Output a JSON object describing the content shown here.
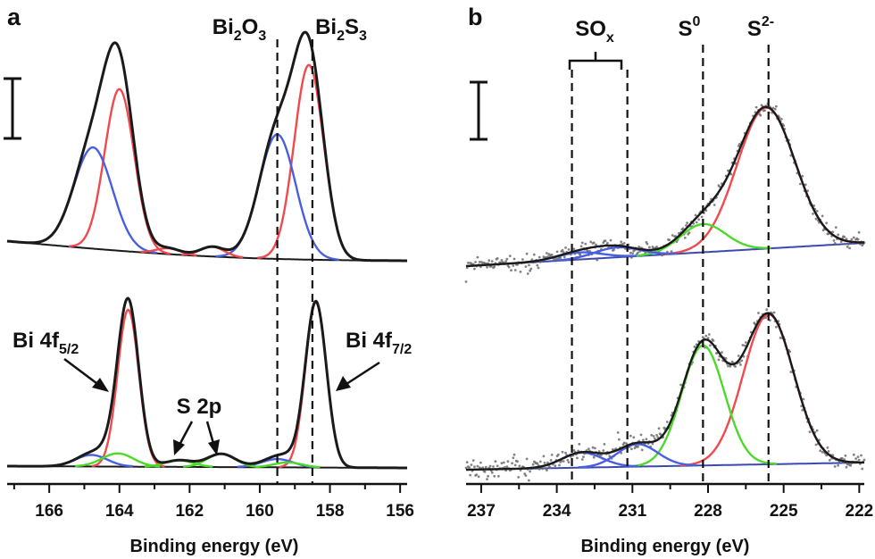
{
  "figure": {
    "panel_a_letter": "a",
    "panel_b_letter": "b"
  },
  "chart_data": [
    {
      "type": "line",
      "panel": "a",
      "xlabel": "Binding energy (eV)",
      "xlim": [
        167.2,
        155.8
      ],
      "x_reversed": true,
      "x_ticks": [
        166,
        164,
        162,
        160,
        158,
        156
      ],
      "grid": false,
      "annotations": {
        "ref1": {
          "text": "Bi",
          "s1": "2",
          "mid": "O",
          "s2": "3",
          "x": 159.5
        },
        "ref2": {
          "text": "Bi",
          "s1": "2",
          "mid": "S",
          "s2": "3",
          "x": 158.5
        },
        "bi52": {
          "text": "Bi 4f",
          "sub": "5/2"
        },
        "bi72": {
          "text": "Bi 4f",
          "sub": "7/2"
        },
        "s2p": {
          "text": "S 2p"
        }
      },
      "spectra": [
        {
          "offset": "upper",
          "peaks": [
            {
              "component": "red",
              "center": 164.0,
              "height": 0.83,
              "width": 0.42
            },
            {
              "component": "blue",
              "center": 164.75,
              "height": 0.52,
              "width": 0.55
            },
            {
              "component": "red",
              "center": 158.6,
              "height": 1.0,
              "width": 0.42
            },
            {
              "component": "blue",
              "center": 159.5,
              "height": 0.64,
              "width": 0.52
            },
            {
              "component": "red",
              "center": 161.35,
              "height": 0.05,
              "width": 0.35
            },
            {
              "component": "red",
              "center": 162.6,
              "height": 0.03,
              "width": 0.35
            }
          ]
        },
        {
          "offset": "lower",
          "peaks": [
            {
              "component": "red",
              "center": 163.75,
              "height": 0.95,
              "width": 0.3
            },
            {
              "component": "red",
              "center": 158.4,
              "height": 1.0,
              "width": 0.3
            },
            {
              "component": "blue",
              "center": 164.8,
              "height": 0.07,
              "width": 0.45
            },
            {
              "component": "blue",
              "center": 159.5,
              "height": 0.05,
              "width": 0.45
            },
            {
              "component": "green",
              "center": 164.05,
              "height": 0.08,
              "width": 0.45
            },
            {
              "component": "green",
              "center": 162.3,
              "height": 0.04,
              "width": 0.4
            },
            {
              "component": "green",
              "center": 161.1,
              "height": 0.08,
              "width": 0.4
            },
            {
              "component": "green",
              "center": 159.2,
              "height": 0.03,
              "width": 0.4
            }
          ]
        }
      ]
    },
    {
      "type": "line",
      "panel": "b",
      "xlabel": "Binding energy (eV)",
      "xlim": [
        237.6,
        221.8
      ],
      "x_reversed": true,
      "x_ticks": [
        237,
        234,
        231,
        228,
        225,
        222
      ],
      "grid": false,
      "annotations": {
        "sox": {
          "text": "SO",
          "sub": "x",
          "x": [
            233.4,
            231.2
          ]
        },
        "s0": {
          "text": "S",
          "sup": "0",
          "x": 228.2
        },
        "s2m": {
          "text": "S",
          "sup": "2-",
          "x": 225.6
        }
      },
      "spectra": [
        {
          "offset": "upper",
          "peaks": [
            {
              "component": "red",
              "center": 225.7,
              "height": 1.0,
              "width": 1.15
            },
            {
              "component": "green",
              "center": 228.2,
              "height": 0.2,
              "width": 0.9
            },
            {
              "component": "blue",
              "center": 231.6,
              "height": 0.07,
              "width": 0.9
            },
            {
              "component": "blue",
              "center": 233.1,
              "height": 0.05,
              "width": 0.9
            }
          ]
        },
        {
          "offset": "lower",
          "peaks": [
            {
              "component": "red",
              "center": 225.6,
              "height": 1.0,
              "width": 1.0
            },
            {
              "component": "green",
              "center": 228.2,
              "height": 0.8,
              "width": 0.85
            },
            {
              "component": "blue",
              "center": 230.8,
              "height": 0.15,
              "width": 0.8
            },
            {
              "component": "blue",
              "center": 233.0,
              "height": 0.1,
              "width": 0.8
            }
          ]
        }
      ]
    }
  ],
  "colors": {
    "envelope": "#1a1a1a",
    "red": "#f0494e",
    "blue": "#4a5fe0",
    "green": "#4cd92a",
    "baseline": "#3a4ab0",
    "dots": "#6e6e6e"
  }
}
